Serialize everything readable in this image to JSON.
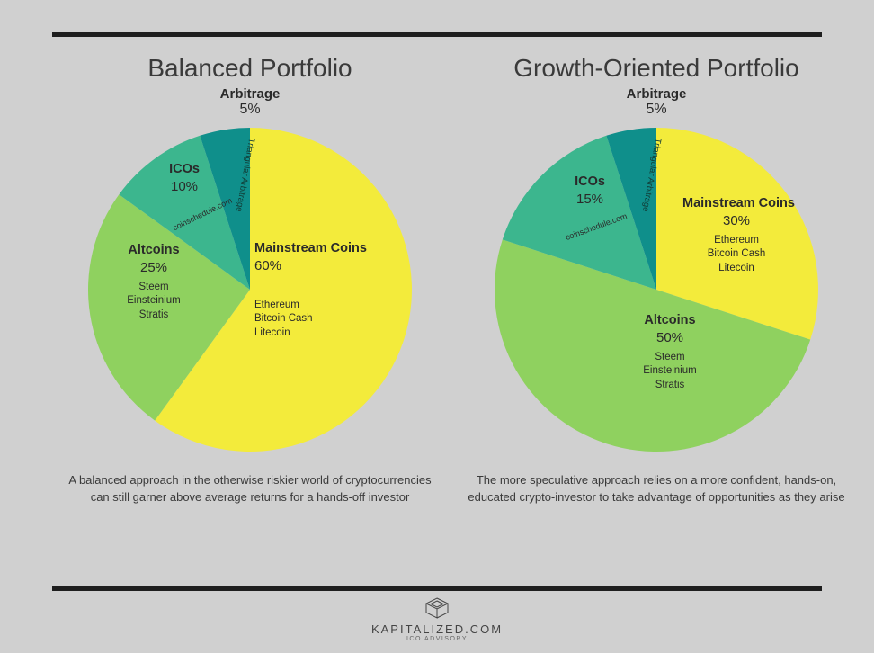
{
  "background_color": "#d0d0d0",
  "rule_color": "#1e1e1e",
  "left": {
    "title": "Balanced Portfolio",
    "arbitrage_label": "Arbitrage",
    "arbitrage_pct": "5%",
    "type": "pie",
    "slices": [
      {
        "key": "mainstream",
        "name": "Mainstream Coins",
        "pct": 60,
        "pct_label": "60%",
        "color": "#f3eb3b",
        "sub1": "Ethereum",
        "sub2": "Bitcoin Cash",
        "sub3": "Litecoin"
      },
      {
        "key": "altcoins",
        "name": "Altcoins",
        "pct": 25,
        "pct_label": "25%",
        "color": "#8fd15f",
        "sub1": "Steem",
        "sub2": "Einsteinium",
        "sub3": "Stratis"
      },
      {
        "key": "icos",
        "name": "ICOs",
        "pct": 10,
        "pct_label": "10%",
        "color": "#3cb68e",
        "subnote": "coinschedule.com"
      },
      {
        "key": "arbitrage",
        "name": "Arbitrage",
        "pct": 5,
        "pct_label": "5%",
        "color": "#0f8f8b",
        "subnote": "Triangular Arbitrage"
      }
    ],
    "caption": "A balanced approach in the otherwise riskier world of cryptocurrencies can still garner above average returns for a hands-off investor"
  },
  "right": {
    "title": "Growth-Oriented Portfolio",
    "arbitrage_label": "Arbitrage",
    "arbitrage_pct": "5%",
    "type": "pie",
    "slices": [
      {
        "key": "mainstream",
        "name": "Mainstream Coins",
        "pct": 30,
        "pct_label": "30%",
        "color": "#f3eb3b",
        "sub1": "Ethereum",
        "sub2": "Bitcoin Cash",
        "sub3": "Litecoin"
      },
      {
        "key": "altcoins",
        "name": "Altcoins",
        "pct": 50,
        "pct_label": "50%",
        "color": "#8fd15f",
        "sub1": "Steem",
        "sub2": "Einsteinium",
        "sub3": "Stratis"
      },
      {
        "key": "icos",
        "name": "ICOs",
        "pct": 15,
        "pct_label": "15%",
        "color": "#3cb68e",
        "subnote": "coinschedule.com"
      },
      {
        "key": "arbitrage",
        "name": "Arbitrage",
        "pct": 5,
        "pct_label": "5%",
        "color": "#0f8f8b",
        "subnote": "Triangular Arbitrage"
      }
    ],
    "caption": "The more speculative approach relies on a more confident, hands-on, educated crypto-investor to take advantage of opportunities as they arise"
  },
  "logo": {
    "text": "KAPITALIZED.COM",
    "sub": "ICO ADVISORY"
  }
}
